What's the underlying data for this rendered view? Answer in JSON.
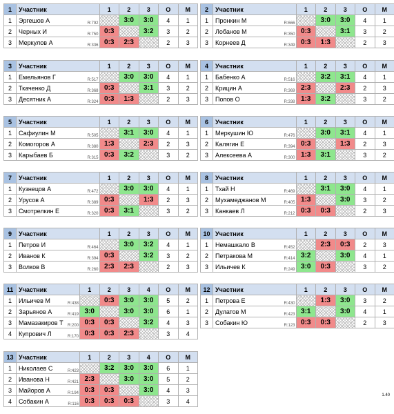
{
  "groups": [
    {
      "number": 1,
      "header": [
        "Участник",
        "1",
        "2",
        "3",
        "О",
        "М"
      ],
      "rows": [
        {
          "place": 1,
          "name": "Эргешов А",
          "rating": "R:792",
          "results": [
            null,
            "3:0",
            "3:0"
          ],
          "points": 4,
          "rank": 1
        },
        {
          "place": 2,
          "name": "Черных И",
          "rating": "R:750",
          "results": [
            "0:3",
            null,
            "3:2"
          ],
          "points": 3,
          "rank": 2
        },
        {
          "place": 3,
          "name": "Меркулов А",
          "rating": "R:336",
          "results": [
            "0:3",
            "2:3",
            null
          ],
          "points": 2,
          "rank": 3
        }
      ]
    },
    {
      "number": 2,
      "header": [
        "Участник",
        "1",
        "2",
        "3",
        "О",
        "М"
      ],
      "rows": [
        {
          "place": 1,
          "name": "Пронкин М",
          "rating": "R:666",
          "results": [
            null,
            "3:0",
            "3:0"
          ],
          "points": 4,
          "rank": 1
        },
        {
          "place": 2,
          "name": "Лобанов М",
          "rating": "R:350",
          "results": [
            "0:3",
            null,
            "3:1"
          ],
          "points": 3,
          "rank": 2
        },
        {
          "place": 3,
          "name": "Корнеев Д",
          "rating": "R:349",
          "results": [
            "0:3",
            "1:3",
            null
          ],
          "points": 2,
          "rank": 3
        }
      ]
    },
    {
      "number": 3,
      "header": [
        "Участник",
        "1",
        "2",
        "3",
        "О",
        "М"
      ],
      "rows": [
        {
          "place": 1,
          "name": "Емельянов Г",
          "rating": "R:517",
          "results": [
            null,
            "3:0",
            "3:0"
          ],
          "points": 4,
          "rank": 1
        },
        {
          "place": 2,
          "name": "Ткаченко Д",
          "rating": "R:368",
          "results": [
            "0:3",
            null,
            "3:1"
          ],
          "points": 3,
          "rank": 2
        },
        {
          "place": 3,
          "name": "Десятник А",
          "rating": "R:324",
          "results": [
            "0:3",
            "1:3",
            null
          ],
          "points": 2,
          "rank": 3
        }
      ]
    },
    {
      "number": 4,
      "header": [
        "Участник",
        "1",
        "2",
        "3",
        "О",
        "М"
      ],
      "rows": [
        {
          "place": 1,
          "name": "Бабенко А",
          "rating": "R:516",
          "results": [
            null,
            "3:2",
            "3:1"
          ],
          "points": 4,
          "rank": 1
        },
        {
          "place": 2,
          "name": "Крицин А",
          "rating": "R:369",
          "results": [
            "2:3",
            null,
            "2:3"
          ],
          "points": 2,
          "rank": 3
        },
        {
          "place": 3,
          "name": "Попов О",
          "rating": "R:338",
          "results": [
            "1:3",
            "3:2",
            null
          ],
          "points": 3,
          "rank": 2
        }
      ]
    },
    {
      "number": 5,
      "header": [
        "Участник",
        "1",
        "2",
        "3",
        "О",
        "М"
      ],
      "rows": [
        {
          "place": 1,
          "name": "Сафиулин М",
          "rating": "R:505",
          "results": [
            null,
            "3:1",
            "3:0"
          ],
          "points": 4,
          "rank": 1
        },
        {
          "place": 2,
          "name": "Комогоров А",
          "rating": "R:380",
          "results": [
            "1:3",
            null,
            "2:3"
          ],
          "points": 2,
          "rank": 3
        },
        {
          "place": 3,
          "name": "Карыбаев Б",
          "rating": "R:315",
          "results": [
            "0:3",
            "3:2",
            null
          ],
          "points": 3,
          "rank": 2
        }
      ]
    },
    {
      "number": 6,
      "header": [
        "Участник",
        "1",
        "2",
        "3",
        "О",
        "М"
      ],
      "rows": [
        {
          "place": 1,
          "name": "Меркушин Ю",
          "rating": "R:476",
          "results": [
            null,
            "3:0",
            "3:1"
          ],
          "points": 4,
          "rank": 1
        },
        {
          "place": 2,
          "name": "Калягин Е",
          "rating": "R:394",
          "results": [
            "0:3",
            null,
            "1:3"
          ],
          "points": 2,
          "rank": 3
        },
        {
          "place": 3,
          "name": "Алексеева А",
          "rating": "R:300",
          "results": [
            "1:3",
            "3:1",
            null
          ],
          "points": 3,
          "rank": 2
        }
      ]
    },
    {
      "number": 7,
      "header": [
        "Участник",
        "1",
        "2",
        "3",
        "О",
        "М"
      ],
      "rows": [
        {
          "place": 1,
          "name": "Кузнецов А",
          "rating": "R:472",
          "results": [
            null,
            "3:0",
            "3:0"
          ],
          "points": 4,
          "rank": 1
        },
        {
          "place": 2,
          "name": "Урусов А",
          "rating": "R:389",
          "results": [
            "0:3",
            null,
            "1:3"
          ],
          "points": 2,
          "rank": 3
        },
        {
          "place": 3,
          "name": "Смотрелкин Е",
          "rating": "R:320",
          "results": [
            "0:3",
            "3:1",
            null
          ],
          "points": 3,
          "rank": 2
        }
      ]
    },
    {
      "number": 8,
      "header": [
        "Участник",
        "1",
        "2",
        "3",
        "О",
        "М"
      ],
      "rows": [
        {
          "place": 1,
          "name": "Тхай Н",
          "rating": "R:469",
          "results": [
            null,
            "3:1",
            "3:0"
          ],
          "points": 4,
          "rank": 1
        },
        {
          "place": 2,
          "name": "Мухамеджанов М",
          "rating": "R:405",
          "results": [
            "1:3",
            null,
            "3:0"
          ],
          "points": 3,
          "rank": 2
        },
        {
          "place": 3,
          "name": "Канкаев Л",
          "rating": "R:212",
          "results": [
            "0:3",
            "0:3",
            null
          ],
          "points": 2,
          "rank": 3
        }
      ]
    },
    {
      "number": 9,
      "header": [
        "Участник",
        "1",
        "2",
        "3",
        "О",
        "М"
      ],
      "rows": [
        {
          "place": 1,
          "name": "Петров И",
          "rating": "R:464",
          "results": [
            null,
            "3:0",
            "3:2"
          ],
          "points": 4,
          "rank": 1
        },
        {
          "place": 2,
          "name": "Иванов К",
          "rating": "R:394",
          "results": [
            "0:3",
            null,
            "3:2"
          ],
          "points": 3,
          "rank": 2
        },
        {
          "place": 3,
          "name": "Волков В",
          "rating": "R:260",
          "results": [
            "2:3",
            "2:3",
            null
          ],
          "points": 2,
          "rank": 3
        }
      ]
    },
    {
      "number": 10,
      "header": [
        "Участник",
        "1",
        "2",
        "3",
        "О",
        "М"
      ],
      "rows": [
        {
          "place": 1,
          "name": "Немашкало В",
          "rating": "R:452",
          "results": [
            null,
            "2:3",
            "0:3"
          ],
          "points": 2,
          "rank": 3
        },
        {
          "place": 2,
          "name": "Петракова М",
          "rating": "R:414",
          "results": [
            "3:2",
            null,
            "3:0"
          ],
          "points": 4,
          "rank": 1
        },
        {
          "place": 3,
          "name": "Ильичев К",
          "rating": "R:249",
          "results": [
            "3:0",
            "0:3",
            null
          ],
          "points": 3,
          "rank": 2
        }
      ]
    },
    {
      "number": 11,
      "header": [
        "Участник",
        "1",
        "2",
        "3",
        "4",
        "О",
        "М"
      ],
      "rows": [
        {
          "place": 1,
          "name": "Ильичев М",
          "rating": "R:438",
          "results": [
            null,
            "0:3",
            "3:0",
            "3:0"
          ],
          "points": 5,
          "rank": 2
        },
        {
          "place": 2,
          "name": "Зарьянов А",
          "rating": "R:419",
          "results": [
            "3:0",
            null,
            "3:0",
            "3:0"
          ],
          "points": 6,
          "rank": 1
        },
        {
          "place": 3,
          "name": "Мамазакиров Т",
          "rating": "R:200",
          "results": [
            "0:3",
            "0:3",
            null,
            "3:2"
          ],
          "points": 4,
          "rank": 3
        },
        {
          "place": 4,
          "name": "Купрович Л",
          "rating": "R:170",
          "results": [
            "0:3",
            "0:3",
            "2:3",
            null
          ],
          "points": 3,
          "rank": 4
        }
      ]
    },
    {
      "number": 12,
      "header": [
        "Участник",
        "1",
        "2",
        "3",
        "О",
        "М"
      ],
      "rows": [
        {
          "place": 1,
          "name": "Петрова Е",
          "rating": "R:430",
          "results": [
            null,
            "1:3",
            "3:0"
          ],
          "points": 3,
          "rank": 2
        },
        {
          "place": 2,
          "name": "Дулатов М",
          "rating": "R:423",
          "results": [
            "3:1",
            null,
            "3:0"
          ],
          "points": 4,
          "rank": 1
        },
        {
          "place": 3,
          "name": "Собакин Ю",
          "rating": "R:123",
          "results": [
            "0:3",
            "0:3",
            null
          ],
          "points": 2,
          "rank": 3
        }
      ]
    },
    {
      "number": 13,
      "header": [
        "Участник",
        "1",
        "2",
        "3",
        "4",
        "О",
        "М"
      ],
      "rows": [
        {
          "place": 1,
          "name": "Николаев С",
          "rating": "R:423",
          "results": [
            null,
            "3:2",
            "3:0",
            "3:0"
          ],
          "points": 6,
          "rank": 1
        },
        {
          "place": 2,
          "name": "Иванова Н",
          "rating": "R:421",
          "results": [
            "2:3",
            null,
            "3:0",
            "3:0"
          ],
          "points": 5,
          "rank": 2
        },
        {
          "place": 3,
          "name": "Майоров А",
          "rating": "R:194",
          "results": [
            "0:3",
            "0:3",
            null,
            "3:0"
          ],
          "points": 4,
          "rank": 3
        },
        {
          "place": 4,
          "name": "Собакин А",
          "rating": "R:116",
          "results": [
            "0:3",
            "0:3",
            "0:3",
            null
          ],
          "points": 3,
          "rank": 4
        }
      ]
    }
  ],
  "footer": {
    "version": "1.40"
  }
}
